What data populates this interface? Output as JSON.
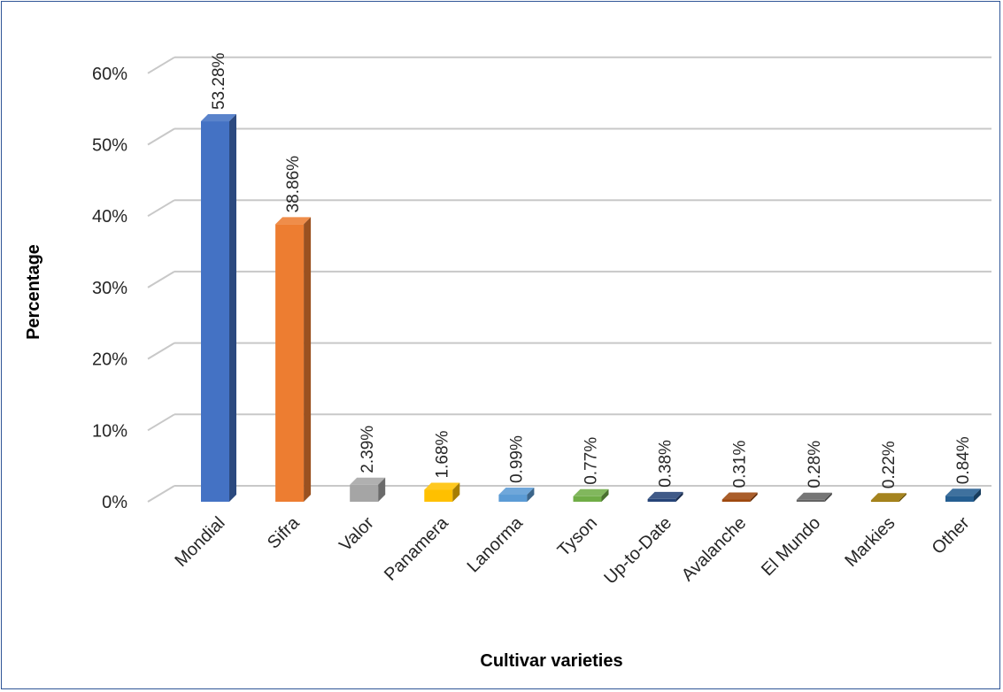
{
  "chart_data": {
    "type": "bar",
    "title": "",
    "xlabel": "Cultivar varieties",
    "ylabel": "Percentage",
    "ylim": [
      0,
      60
    ],
    "y_ticks": [
      "0%",
      "10%",
      "20%",
      "30%",
      "40%",
      "50%",
      "60%"
    ],
    "grid": true,
    "legend": "none",
    "categories": [
      "Mondial",
      "Sifra",
      "Valor",
      "Panamera",
      "Lanorma",
      "Tyson",
      "Up-to-Date",
      "Avalanche",
      "El Mundo",
      "Markies",
      "Other"
    ],
    "values": [
      53.28,
      38.86,
      2.39,
      1.68,
      0.99,
      0.77,
      0.38,
      0.31,
      0.28,
      0.22,
      0.84
    ],
    "data_labels": [
      "53.28%",
      "38.86%",
      "2.39%",
      "1.68%",
      "0.99%",
      "0.77%",
      "0.38%",
      "0.31%",
      "0.28%",
      "0.22%",
      "0.84%"
    ],
    "colors": [
      "#4472c4",
      "#ed7d31",
      "#a5a5a5",
      "#ffc000",
      "#5b9bd5",
      "#70ad47",
      "#264478",
      "#9e480e",
      "#636363",
      "#997300",
      "#255e91"
    ]
  }
}
